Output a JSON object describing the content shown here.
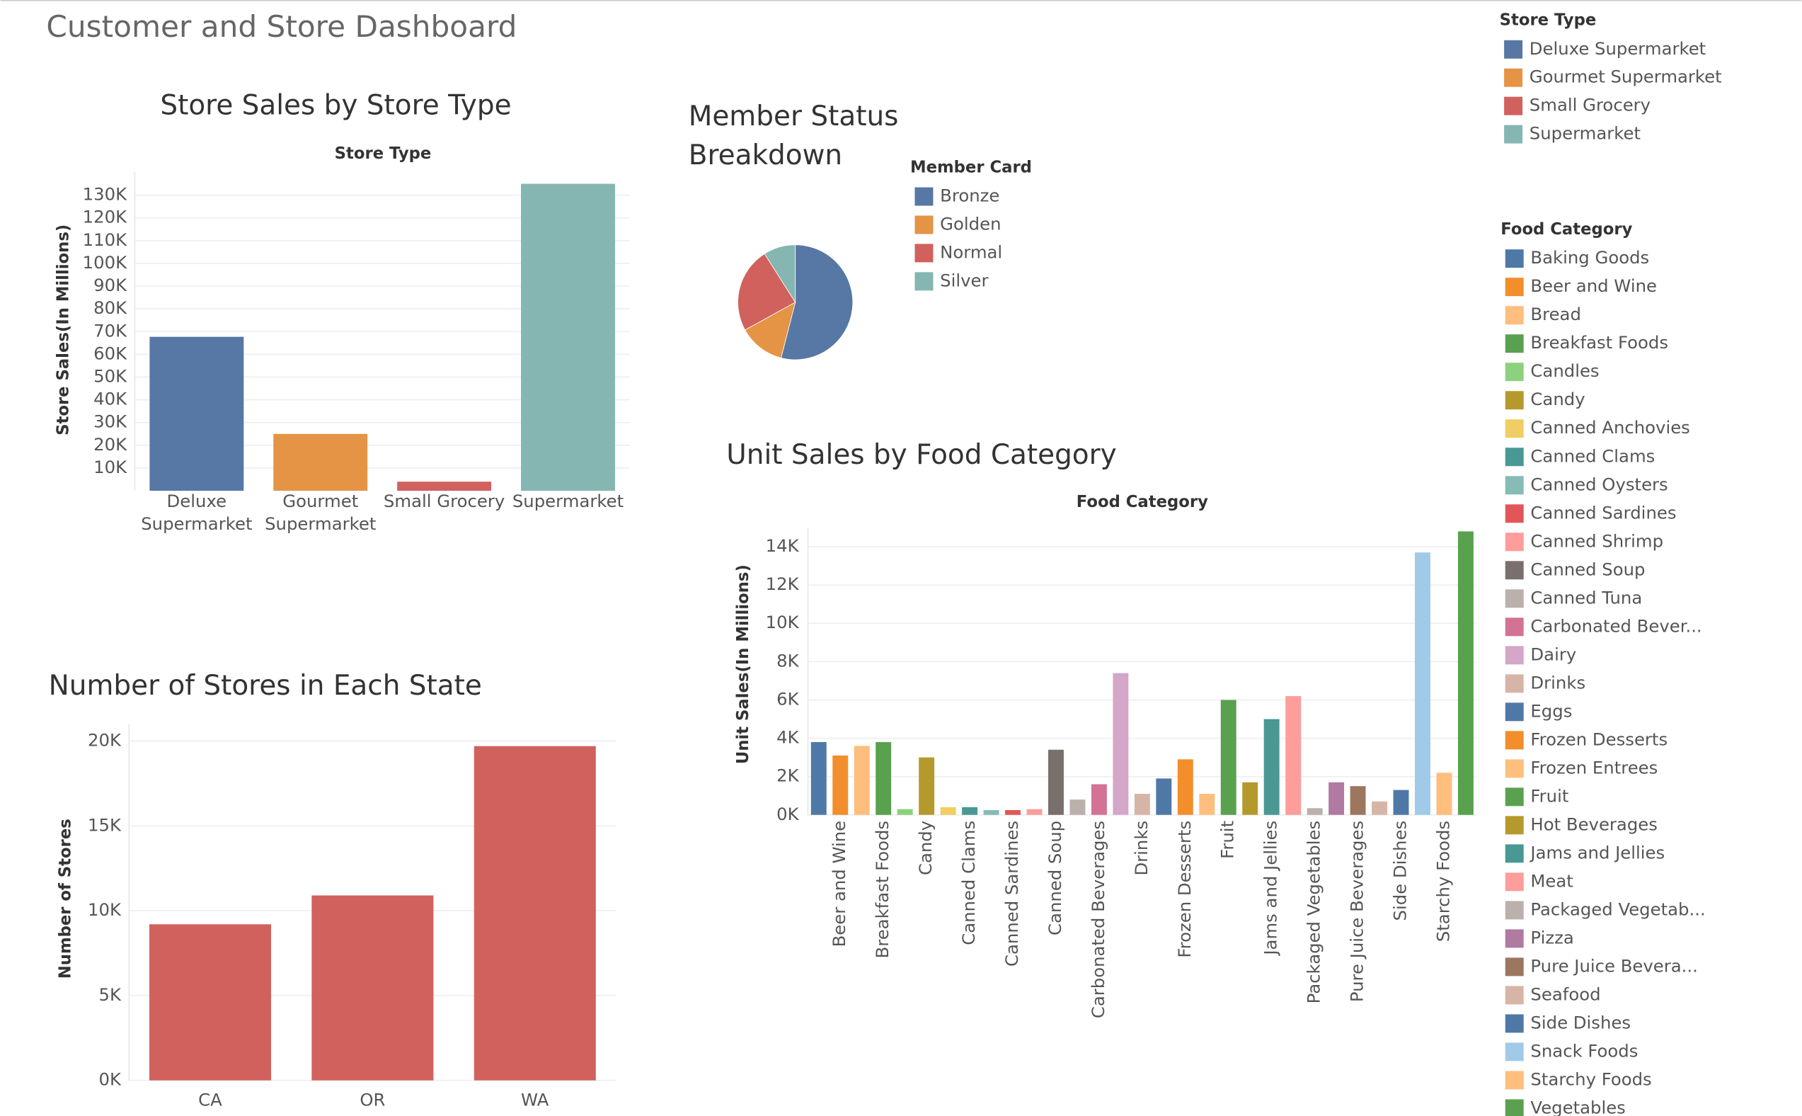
{
  "title": "Customer and Store Dashboard",
  "chart_data": [
    {
      "type": "bar",
      "title": "Store Sales by Store Type",
      "x_header": "Store Type",
      "ylabel": "Store Sales(In Millions)",
      "categories": [
        "Deluxe Supermarket",
        "Gourmet Supermarket",
        "Small Grocery",
        "Supermarket"
      ],
      "values": [
        67700,
        25000,
        4000,
        135000
      ],
      "colors": [
        "#5778a4",
        "#e49444",
        "#d1615d",
        "#85b6b2"
      ],
      "ylim": [
        0,
        140000
      ],
      "yticks": [
        {
          "value": 10000,
          "label": "10K"
        },
        {
          "value": 20000,
          "label": "20K"
        },
        {
          "value": 30000,
          "label": "30K"
        },
        {
          "value": 40000,
          "label": "40K"
        },
        {
          "value": 50000,
          "label": "50K"
        },
        {
          "value": 60000,
          "label": "60K"
        },
        {
          "value": 70000,
          "label": "70K"
        },
        {
          "value": 80000,
          "label": "80K"
        },
        {
          "value": 90000,
          "label": "90K"
        },
        {
          "value": 100000,
          "label": "100K"
        },
        {
          "value": 110000,
          "label": "110K"
        },
        {
          "value": 120000,
          "label": "120K"
        },
        {
          "value": 130000,
          "label": "130K"
        }
      ],
      "grid": true,
      "legend_title": "Store Type"
    },
    {
      "type": "pie",
      "title": "Member Status Breakdown",
      "legend_title": "Member Card",
      "categories": [
        "Bronze",
        "Golden",
        "Normal",
        "Silver"
      ],
      "values": [
        54,
        13,
        24,
        9
      ],
      "colors": [
        "#5778a4",
        "#e49444",
        "#d1615d",
        "#85b6b2"
      ]
    },
    {
      "type": "bar",
      "title": "Number of Stores in Each State",
      "ylabel": "Number of Stores",
      "categories": [
        "CA",
        "OR",
        "WA"
      ],
      "values": [
        9200,
        10900,
        19700
      ],
      "colors": [
        "#d1615d",
        "#d1615d",
        "#d1615d"
      ],
      "ylim": [
        0,
        21000
      ],
      "yticks": [
        {
          "value": 0,
          "label": "0K"
        },
        {
          "value": 5000,
          "label": "5K"
        },
        {
          "value": 10000,
          "label": "10K"
        },
        {
          "value": 15000,
          "label": "15K"
        },
        {
          "value": 20000,
          "label": "20K"
        }
      ],
      "grid": true
    },
    {
      "type": "bar",
      "title": "Unit Sales by Food Category",
      "x_header": "Food Category",
      "ylabel": "Unit Sales(In Millions)",
      "rotate_labels": true,
      "categories": [
        null,
        "Beer and Wine",
        null,
        "Breakfast Foods",
        null,
        "Candy",
        null,
        "Canned Clams",
        null,
        "Canned Sardines",
        null,
        "Canned Soup",
        null,
        "Carbonated Beverages",
        null,
        "Drinks",
        null,
        "Frozen Desserts",
        null,
        "Fruit",
        null,
        "Jams and Jellies",
        null,
        "Packaged Vegetables",
        null,
        "Pure Juice Beverages",
        null,
        "Side Dishes",
        null,
        "Starchy Foods",
        null
      ],
      "values": [
        3800,
        3100,
        3600,
        3800,
        300,
        3000,
        400,
        400,
        250,
        250,
        300,
        3400,
        800,
        1600,
        7400,
        1100,
        1900,
        2900,
        1100,
        6000,
        1700,
        5000,
        6200,
        350,
        1700,
        1500,
        700,
        1300,
        13700,
        2200,
        14800
      ],
      "colors": [
        "#4e79a7",
        "#f28e2b",
        "#ffbe7d",
        "#59a14f",
        "#8cd17d",
        "#b6992d",
        "#f1ce63",
        "#499894",
        "#86bcb6",
        "#e15759",
        "#ff9d9a",
        "#79706e",
        "#bab0ac",
        "#d37295",
        "#d4a6c8",
        "#d7b5a6",
        "#4e79a7",
        "#f28e2b",
        "#ffbe7d",
        "#59a14f",
        "#b6992d",
        "#499894",
        "#ff9d9a",
        "#bab0ac",
        "#b07aa1",
        "#9d7660",
        "#d7b5a6",
        "#4e79a7",
        "#a0cbe8",
        "#ffbe7d",
        "#59a14f"
      ],
      "ylim": [
        0,
        15000
      ],
      "yticks": [
        {
          "value": 0,
          "label": "0K"
        },
        {
          "value": 2000,
          "label": "2K"
        },
        {
          "value": 4000,
          "label": "4K"
        },
        {
          "value": 6000,
          "label": "6K"
        },
        {
          "value": 8000,
          "label": "8K"
        },
        {
          "value": 10000,
          "label": "10K"
        },
        {
          "value": 12000,
          "label": "12K"
        },
        {
          "value": 14000,
          "label": "14K"
        }
      ],
      "grid": true,
      "legend": {
        "title": "Food Category",
        "labels": [
          "Baking Goods",
          "Beer and Wine",
          "Bread",
          "Breakfast Foods",
          "Candles",
          "Candy",
          "Canned Anchovies",
          "Canned Clams",
          "Canned Oysters",
          "Canned Sardines",
          "Canned Shrimp",
          "Canned Soup",
          "Canned Tuna",
          "Carbonated Bever...",
          "Dairy",
          "Drinks",
          "Eggs",
          "Frozen Desserts",
          "Frozen Entrees",
          "Fruit",
          "Hot Beverages",
          "Jams and Jellies",
          "Meat",
          "Packaged Vegetab...",
          "Pizza",
          "Pure Juice Bevera...",
          "Seafood",
          "Side Dishes",
          "Snack Foods",
          "Starchy Foods",
          "Vegetables"
        ]
      }
    }
  ]
}
